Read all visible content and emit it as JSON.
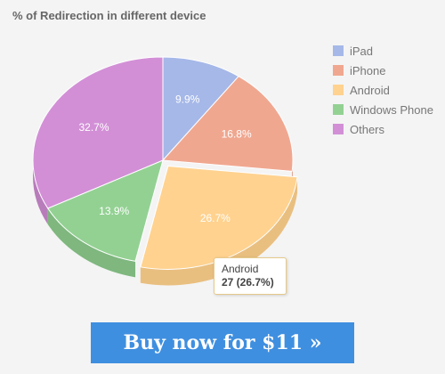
{
  "chart_data": {
    "type": "pie",
    "title": "% of Redirection in different device",
    "legend_position": "right",
    "categories": [
      "iPad",
      "iPhone",
      "Android",
      "Windows Phone",
      "Others"
    ],
    "values": [
      9.9,
      16.8,
      26.7,
      13.9,
      32.7
    ],
    "slice_labels": [
      "9.9%",
      "16.8%",
      "26.7%",
      "13.9%",
      "32.7%"
    ],
    "colors": [
      "#a6b8e8",
      "#f0a790",
      "#ffd28f",
      "#93d193",
      "#d28fd6"
    ],
    "side_colors": [
      "#8fa0cf",
      "#d99582",
      "#e9bf80",
      "#7fb77f",
      "#b87cbb"
    ],
    "tooltip": {
      "label": "Android",
      "value_text": "27 (26.7%)"
    }
  },
  "cta": {
    "label": "Buy now for $11 »"
  }
}
